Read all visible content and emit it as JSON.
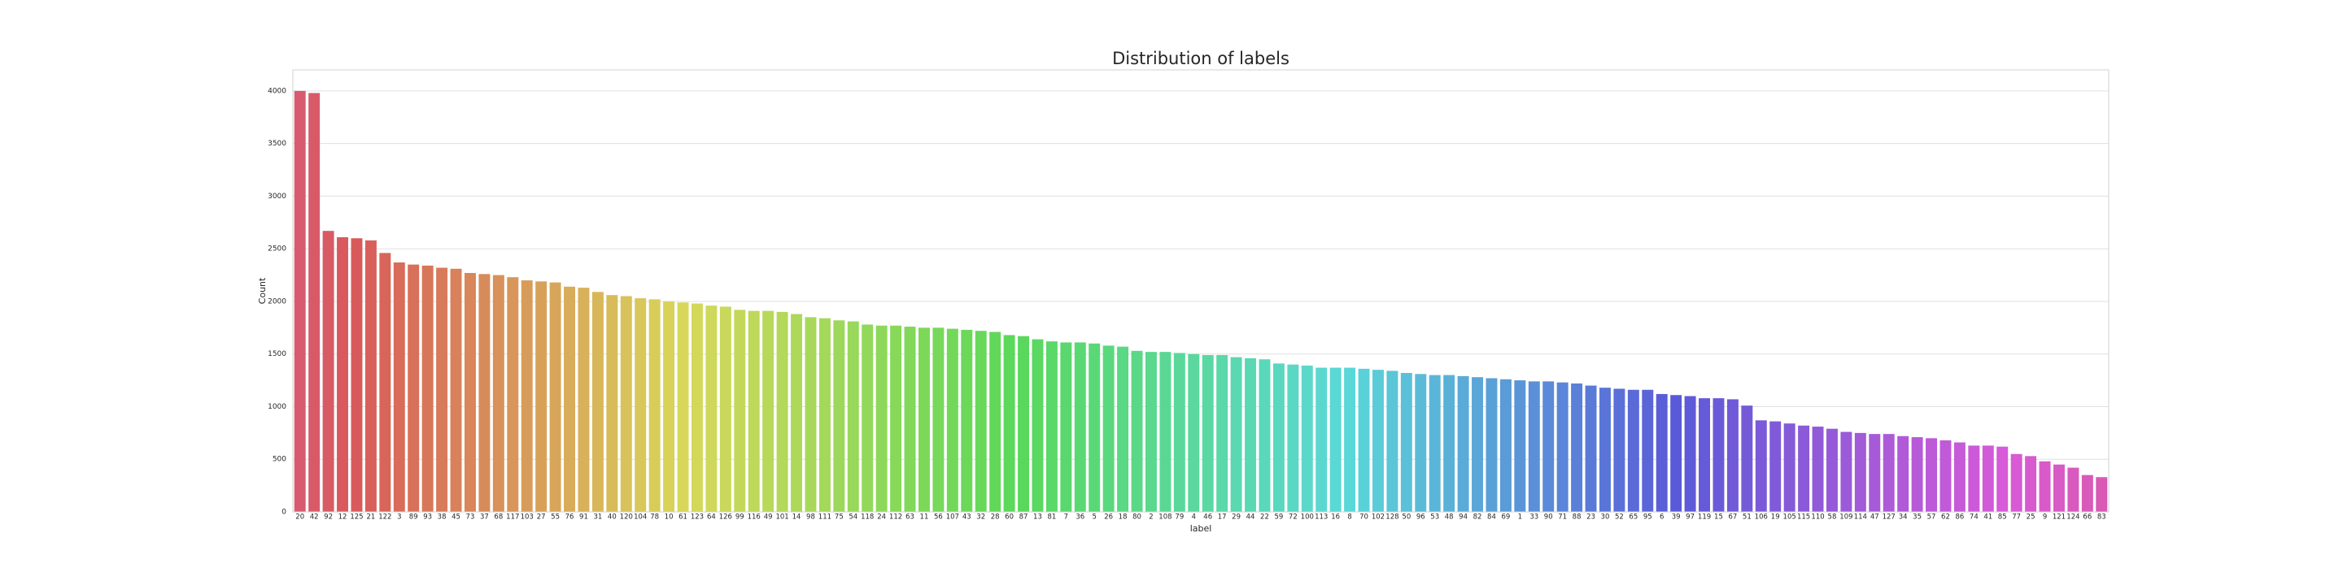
{
  "chart_data": {
    "type": "bar",
    "title": "Distribution of labels",
    "x_label": "label",
    "y_label": "Count",
    "categories": [
      "20",
      "42",
      "92",
      "12",
      "125",
      "21",
      "122",
      "3",
      "89",
      "93",
      "38",
      "45",
      "73",
      "37",
      "68",
      "117",
      "103",
      "27",
      "55",
      "76",
      "91",
      "31",
      "40",
      "120",
      "104",
      "78",
      "10",
      "61",
      "123",
      "64",
      "126",
      "99",
      "116",
      "49",
      "101",
      "14",
      "98",
      "111",
      "75",
      "54",
      "118",
      "24",
      "112",
      "63",
      "11",
      "56",
      "107",
      "43",
      "32",
      "28",
      "60",
      "87",
      "13",
      "81",
      "7",
      "36",
      "5",
      "26",
      "18",
      "80",
      "2",
      "108",
      "79",
      "4",
      "46",
      "17",
      "29",
      "44",
      "22",
      "59",
      "72",
      "100",
      "113",
      "16",
      "8",
      "70",
      "102",
      "128",
      "50",
      "96",
      "53",
      "48",
      "94",
      "82",
      "84",
      "69",
      "1",
      "33",
      "90",
      "71",
      "88",
      "23",
      "30",
      "52",
      "65",
      "95",
      "6",
      "39",
      "97",
      "119",
      "15",
      "67",
      "51",
      "106",
      "19",
      "105",
      "115",
      "110",
      "58",
      "109",
      "114",
      "47",
      "127",
      "34",
      "35",
      "57",
      "62",
      "86",
      "74",
      "41",
      "85",
      "77",
      "25",
      "9",
      "121",
      "124",
      "66",
      "83"
    ],
    "values": [
      4000,
      3980,
      2670,
      2610,
      2600,
      2580,
      2460,
      2370,
      2350,
      2340,
      2320,
      2310,
      2270,
      2260,
      2250,
      2230,
      2200,
      2190,
      2180,
      2140,
      2130,
      2090,
      2060,
      2050,
      2030,
      2020,
      2000,
      1990,
      1980,
      1960,
      1950,
      1920,
      1910,
      1910,
      1900,
      1880,
      1850,
      1840,
      1820,
      1810,
      1780,
      1770,
      1770,
      1760,
      1750,
      1750,
      1740,
      1730,
      1720,
      1710,
      1680,
      1670,
      1640,
      1620,
      1610,
      1610,
      1600,
      1580,
      1570,
      1530,
      1520,
      1520,
      1510,
      1500,
      1490,
      1490,
      1470,
      1460,
      1450,
      1410,
      1400,
      1390,
      1370,
      1370,
      1370,
      1360,
      1350,
      1340,
      1320,
      1310,
      1300,
      1300,
      1290,
      1280,
      1270,
      1260,
      1250,
      1240,
      1240,
      1230,
      1220,
      1200,
      1180,
      1170,
      1160,
      1160,
      1120,
      1110,
      1100,
      1080,
      1080,
      1070,
      1010,
      870,
      860,
      840,
      820,
      810,
      790,
      760,
      750,
      740,
      740,
      720,
      710,
      700,
      680,
      660,
      630,
      630,
      620,
      550,
      530,
      480,
      450,
      420,
      350,
      330
    ],
    "palette": "husl",
    "ylim": [
      0,
      4200
    ],
    "yticks": [
      0,
      500,
      1000,
      1500,
      2000,
      2500,
      3000,
      3500,
      4000
    ],
    "grid": true
  }
}
